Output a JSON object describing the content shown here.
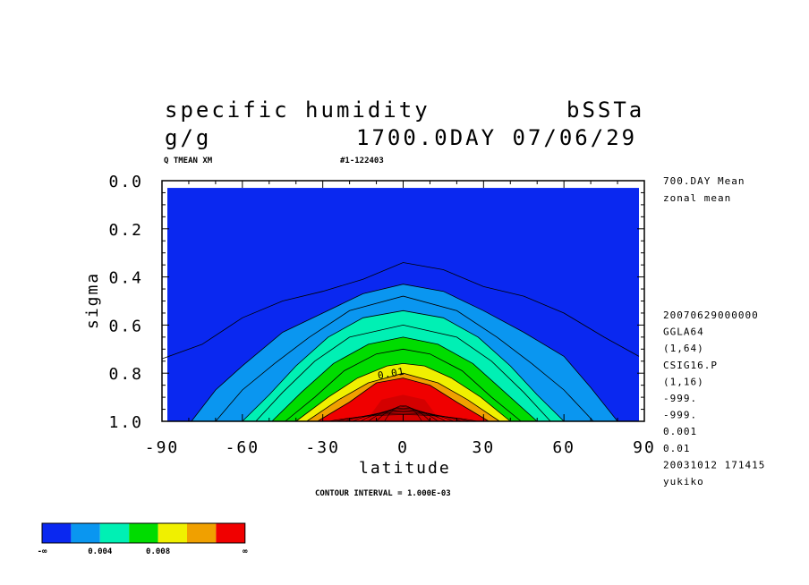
{
  "header": {
    "title": "specific humidity",
    "experiment": "bSSTa",
    "units": "g/g",
    "date": "1700.0DAY 07/06/29",
    "subtitle_left": "Q TMEAN XM",
    "subtitle_right": "#1-122403"
  },
  "side_info": [
    "700.DAY Mean",
    "zonal mean"
  ],
  "meta_info": [
    "20070629000000",
    "GGLA64",
    "(1,64)",
    "CSIG16.P",
    "(1,16)",
    "-999.",
    "-999.",
    "0.001",
    "0.01",
    "20031012 171415",
    "yukiko"
  ],
  "contour_interval": "CONTOUR INTERVAL = 1.000E-03",
  "contour_label": "0.01",
  "colorbar": {
    "colors": [
      "#0a28f0",
      "#0a96f0",
      "#00f0b4",
      "#00dc00",
      "#f0f000",
      "#f0a000",
      "#f00000"
    ],
    "labels": [
      "-∞",
      "0.004",
      "0.008",
      "∞"
    ]
  },
  "chart_data": {
    "type": "contour",
    "xlabel": "latitude",
    "ylabel": "sigma",
    "x_ticks": [
      "-90",
      "-60",
      "-30",
      "0",
      "30",
      "60",
      "90"
    ],
    "y_ticks": [
      "0.0",
      "0.2",
      "0.4",
      "0.6",
      "0.8",
      "1.0"
    ],
    "xlim": [
      -90,
      90
    ],
    "ylim": [
      1.0,
      0.0
    ],
    "levels": [
      0.001,
      0.002,
      0.003,
      0.004,
      0.005,
      0.006,
      0.007,
      0.008,
      0.009,
      0.01,
      0.011,
      0.012,
      0.013,
      0.014,
      0.015,
      0.016,
      0.017
    ],
    "contours": [
      {
        "level": 0.001,
        "points": [
          [
            -90,
            0.74
          ],
          [
            -75,
            0.68
          ],
          [
            -60,
            0.57
          ],
          [
            -45,
            0.5
          ],
          [
            -30,
            0.46
          ],
          [
            -15,
            0.41
          ],
          [
            0,
            0.34
          ],
          [
            15,
            0.37
          ],
          [
            30,
            0.44
          ],
          [
            45,
            0.48
          ],
          [
            60,
            0.55
          ],
          [
            75,
            0.65
          ],
          [
            88,
            0.73
          ]
        ]
      },
      {
        "level": 0.002,
        "points": [
          [
            -79,
            1.0
          ],
          [
            -70,
            0.87
          ],
          [
            -60,
            0.77
          ],
          [
            -45,
            0.63
          ],
          [
            -30,
            0.55
          ],
          [
            -15,
            0.47
          ],
          [
            0,
            0.43
          ],
          [
            15,
            0.46
          ],
          [
            30,
            0.54
          ],
          [
            45,
            0.63
          ],
          [
            60,
            0.73
          ],
          [
            70,
            0.86
          ],
          [
            80,
            1.0
          ]
        ]
      },
      {
        "level": 0.003,
        "points": [
          [
            -70,
            1.0
          ],
          [
            -60,
            0.87
          ],
          [
            -48,
            0.76
          ],
          [
            -35,
            0.65
          ],
          [
            -20,
            0.54
          ],
          [
            0,
            0.48
          ],
          [
            20,
            0.54
          ],
          [
            35,
            0.65
          ],
          [
            48,
            0.76
          ],
          [
            60,
            0.87
          ],
          [
            71,
            1.0
          ]
        ]
      },
      {
        "level": 0.004,
        "points": [
          [
            -60,
            1.0
          ],
          [
            -50,
            0.89
          ],
          [
            -40,
            0.77
          ],
          [
            -28,
            0.65
          ],
          [
            -15,
            0.57
          ],
          [
            0,
            0.54
          ],
          [
            15,
            0.57
          ],
          [
            28,
            0.65
          ],
          [
            40,
            0.77
          ],
          [
            50,
            0.89
          ],
          [
            60,
            1.0
          ]
        ]
      },
      {
        "level": 0.005,
        "points": [
          [
            -55,
            1.0
          ],
          [
            -45,
            0.88
          ],
          [
            -33,
            0.75
          ],
          [
            -20,
            0.65
          ],
          [
            0,
            0.6
          ],
          [
            20,
            0.65
          ],
          [
            33,
            0.75
          ],
          [
            45,
            0.88
          ],
          [
            55,
            1.0
          ]
        ]
      },
      {
        "level": 0.006,
        "points": [
          [
            -49,
            1.0
          ],
          [
            -38,
            0.88
          ],
          [
            -26,
            0.76
          ],
          [
            -13,
            0.68
          ],
          [
            0,
            0.65
          ],
          [
            13,
            0.68
          ],
          [
            26,
            0.76
          ],
          [
            38,
            0.88
          ],
          [
            50,
            1.0
          ]
        ]
      },
      {
        "level": 0.007,
        "points": [
          [
            -44,
            1.0
          ],
          [
            -33,
            0.9
          ],
          [
            -22,
            0.79
          ],
          [
            -10,
            0.72
          ],
          [
            0,
            0.7
          ],
          [
            10,
            0.72
          ],
          [
            22,
            0.79
          ],
          [
            33,
            0.9
          ],
          [
            44,
            1.0
          ]
        ]
      },
      {
        "level": 0.008,
        "points": [
          [
            -40,
            1.0
          ],
          [
            -28,
            0.9
          ],
          [
            -17,
            0.82
          ],
          [
            -6,
            0.77
          ],
          [
            0,
            0.76
          ],
          [
            8,
            0.77
          ],
          [
            18,
            0.82
          ],
          [
            29,
            0.9
          ],
          [
            40,
            1.0
          ]
        ]
      },
      {
        "level": 0.009,
        "points": [
          [
            -36,
            1.0
          ],
          [
            -24,
            0.91
          ],
          [
            -13,
            0.84
          ],
          [
            0,
            0.8
          ],
          [
            13,
            0.84
          ],
          [
            24,
            0.91
          ],
          [
            36,
            1.0
          ]
        ]
      },
      {
        "level": 0.01,
        "points": [
          [
            -32,
            1.0
          ],
          [
            -20,
            0.92
          ],
          [
            -10,
            0.84
          ],
          [
            0,
            0.82
          ],
          [
            10,
            0.85
          ],
          [
            20,
            0.92
          ],
          [
            32,
            1.0
          ]
        ]
      }
    ]
  }
}
